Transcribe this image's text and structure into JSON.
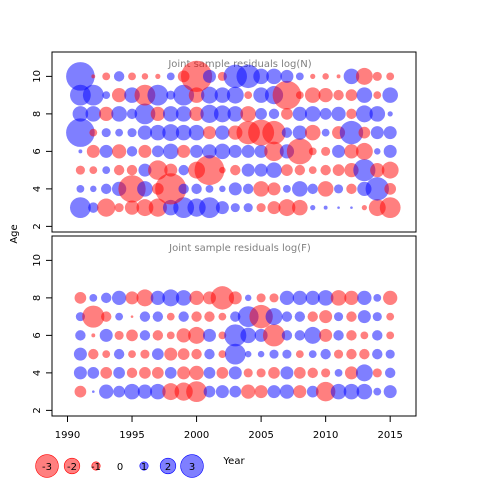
{
  "figure": {
    "ylabel": "Age",
    "xlabel": "Year",
    "legend_labels": [
      "-3",
      "-2",
      "-1",
      "0",
      "1",
      "2",
      "3"
    ],
    "colors": {
      "positive": "#0000FF",
      "negative": "#FF0000",
      "fill_opacity": 0.5,
      "frame": "#000000",
      "title": "#808080"
    }
  },
  "chart_data": [
    {
      "type": "bubble",
      "title": "Joint sample residuals log(N)",
      "xlabel": "Year",
      "ylabel": "Age",
      "xlim": [
        1988.8,
        2017.0
      ],
      "ylim": [
        1.7,
        11.3
      ],
      "x_ticks": [
        1990,
        1995,
        2000,
        2005,
        2010,
        2015
      ],
      "y_ticks": [
        2,
        4,
        6,
        8,
        10
      ],
      "years": [
        1991,
        1992,
        1993,
        1994,
        1995,
        1996,
        1997,
        1998,
        1999,
        2000,
        2001,
        2002,
        2003,
        2004,
        2005,
        2006,
        2007,
        2008,
        2009,
        2010,
        2011,
        2012,
        2013,
        2014,
        2015
      ],
      "ages": [
        3,
        4,
        5,
        6,
        7,
        8,
        9,
        10
      ],
      "residuals": {
        "10": [
          2.2,
          -0.3,
          -0.6,
          0.8,
          -0.6,
          -0.5,
          -0.4,
          0.6,
          -0.9,
          -2.4,
          1.0,
          -0.7,
          1.8,
          1.8,
          1.2,
          1.2,
          1.0,
          0.6,
          -0.4,
          -0.5,
          -0.3,
          1.2,
          -1.3,
          -0.7,
          -0.6
        ],
        "9": [
          1.6,
          1.6,
          0.6,
          -1.1,
          1.2,
          -1.6,
          1.6,
          0.7,
          1.6,
          -1.2,
          1.3,
          1.2,
          1.3,
          -0.6,
          1.2,
          1.4,
          -2.2,
          -0.6,
          -1.2,
          -1.1,
          -0.8,
          -0.9,
          1.2,
          -0.6,
          1.2
        ],
        "8": [
          1.2,
          1.2,
          -1.1,
          1.2,
          0.8,
          1.6,
          -1.1,
          1.2,
          1.2,
          -1.1,
          1.4,
          1.3,
          1.2,
          -1.2,
          0.9,
          0.8,
          -0.9,
          1.1,
          1.2,
          0.9,
          1.1,
          -0.8,
          1.3,
          1.2,
          0.4
        ],
        "7": [
          2.2,
          -0.6,
          0.7,
          0.6,
          0.7,
          1.1,
          1.2,
          1.3,
          1.2,
          1.2,
          -1.0,
          1.1,
          -1.1,
          -1.8,
          -2.0,
          -1.8,
          0.8,
          1.1,
          -1.2,
          0.6,
          -1.0,
          1.8,
          -0.9,
          1.0,
          1.0
        ],
        "6": [
          0.3,
          -1.0,
          1.0,
          -1.1,
          0.8,
          -1.0,
          0.9,
          1.2,
          -1.0,
          1.0,
          1.1,
          1.2,
          1.0,
          1.0,
          1.0,
          -1.5,
          1.1,
          -2.0,
          -0.6,
          -0.7,
          1.0,
          -1.1,
          -1.3,
          0.5,
          1.0
        ],
        "5": [
          -0.7,
          -0.6,
          0.6,
          -0.8,
          -0.8,
          1.0,
          -1.5,
          -1.0,
          0.8,
          -1.3,
          -2.3,
          -0.5,
          -0.8,
          1.0,
          1.0,
          1.2,
          -0.9,
          -0.8,
          -0.6,
          -0.8,
          -0.9,
          -1.1,
          1.7,
          -1.1,
          -1.3
        ],
        "4": [
          0.6,
          0.5,
          0.8,
          1.1,
          -2.1,
          1.2,
          -0.9,
          -2.4,
          0.8,
          0.8,
          0.6,
          0.5,
          1.0,
          0.8,
          -1.2,
          -1.0,
          0.6,
          1.2,
          0.8,
          -1.2,
          0.7,
          -0.8,
          1.1,
          1.8,
          -0.9
        ],
        "3": [
          1.6,
          0.8,
          -1.4,
          -0.7,
          -1.1,
          -1.3,
          -1.4,
          1.2,
          1.6,
          1.4,
          1.6,
          1.0,
          0.7,
          0.7,
          -0.7,
          -1.0,
          -1.3,
          -1.2,
          0.4,
          0.3,
          0.2,
          0.2,
          -0.4,
          -1.3,
          -1.6
        ]
      }
    },
    {
      "type": "bubble",
      "title": "Joint sample residuals log(F)",
      "xlabel": "Year",
      "ylabel": "Age",
      "xlim": [
        1988.8,
        2017.0
      ],
      "ylim": [
        1.7,
        11.3
      ],
      "x_ticks": [
        1990,
        1995,
        2000,
        2005,
        2010,
        2015
      ],
      "y_ticks": [
        2,
        4,
        6,
        8,
        10
      ],
      "years": [
        1991,
        1992,
        1993,
        1994,
        1995,
        1996,
        1997,
        1998,
        1999,
        2000,
        2001,
        2002,
        2003,
        2004,
        2005,
        2006,
        2007,
        2008,
        2009,
        2010,
        2011,
        2012,
        2013,
        2014,
        2015
      ],
      "ages": [
        3,
        4,
        5,
        6,
        7,
        8
      ],
      "residuals": {
        "8": [
          -0.9,
          0.6,
          0.8,
          1.1,
          -1.0,
          -1.3,
          1.1,
          1.3,
          1.2,
          -1.1,
          -1.0,
          -1.8,
          -1.0,
          0.5,
          -0.7,
          -0.7,
          1.1,
          1.1,
          1.1,
          1.2,
          -1.2,
          -1.1,
          1.1,
          0.6,
          -1.1
        ],
        "7": [
          0.7,
          -1.7,
          -0.8,
          0.6,
          -0.2,
          0.8,
          0.8,
          -0.6,
          0.8,
          -0.8,
          -0.8,
          -0.6,
          0.8,
          1.6,
          -1.8,
          1.3,
          0.8,
          0.8,
          -0.8,
          -1.0,
          0.7,
          -0.8,
          1.0,
          0.7,
          -0.6
        ],
        "6": [
          0.8,
          -0.3,
          1.0,
          -0.7,
          -0.9,
          0.8,
          -0.8,
          -0.6,
          -1.1,
          -1.3,
          1.0,
          -0.6,
          1.7,
          1.2,
          1.0,
          -1.7,
          0.8,
          0.8,
          1.3,
          -1.0,
          0.8,
          -0.8,
          -0.6,
          0.8,
          -0.6
        ],
        "5": [
          1.0,
          -0.8,
          -0.6,
          0.8,
          -0.6,
          -0.7,
          0.9,
          -1.0,
          -0.9,
          -0.8,
          0.8,
          -0.6,
          1.6,
          0.5,
          0.5,
          0.7,
          0.7,
          -0.6,
          0.6,
          0.8,
          -0.7,
          -0.8,
          -0.8,
          0.8,
          0.7
        ],
        "4": [
          1.0,
          0.9,
          -0.9,
          0.9,
          -0.8,
          -0.9,
          -0.9,
          0.9,
          -1.0,
          -1.1,
          0.9,
          -0.9,
          1.0,
          -0.7,
          -0.7,
          -0.9,
          1.0,
          -0.9,
          -0.8,
          -0.7,
          0.6,
          -1.0,
          1.3,
          -0.7,
          0.8
        ],
        "3": [
          -0.9,
          0.2,
          1.1,
          0.9,
          1.2,
          1.1,
          1.2,
          -1.3,
          -1.4,
          -1.6,
          0.9,
          1.0,
          0.9,
          -1.1,
          -1.0,
          1.0,
          1.1,
          -1.0,
          0.9,
          -1.5,
          1.2,
          1.2,
          1.2,
          0.6,
          1.0
        ]
      }
    }
  ]
}
